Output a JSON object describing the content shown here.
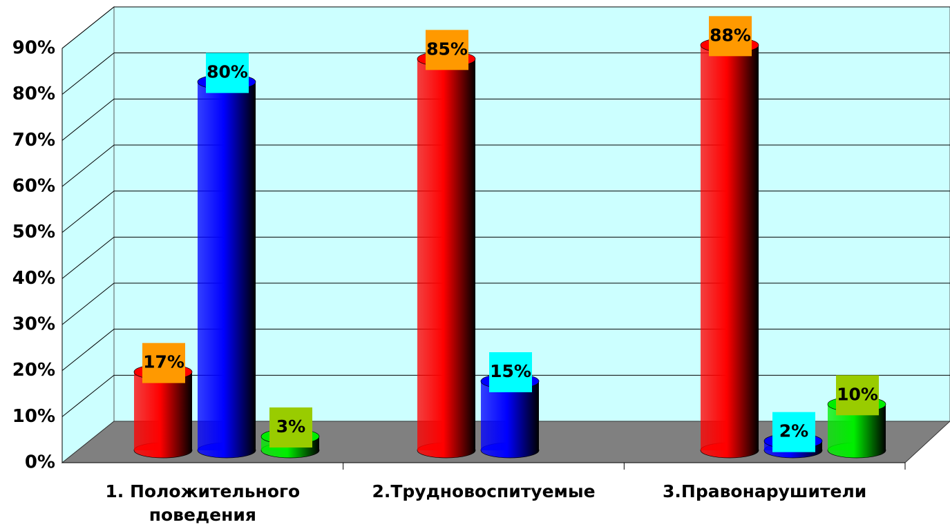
{
  "chart_data": {
    "type": "bar3d",
    "categories": [
      "1. Положительного поведения",
      "2.Трудновоспитуемые",
      "3.Правонарушители"
    ],
    "series": [
      {
        "color": "#ff0000",
        "label_color": "#ff9900",
        "values": [
          17,
          85,
          88
        ],
        "value_labels": [
          "17%",
          "85%",
          "88%"
        ]
      },
      {
        "color": "#0000ff",
        "label_color": "#00ffff",
        "values": [
          80,
          15,
          2
        ],
        "value_labels": [
          "80%",
          "15%",
          "2%"
        ]
      },
      {
        "color": "#00ee00",
        "label_color": "#99cc00",
        "values": [
          3,
          null,
          10
        ],
        "value_labels": [
          "3%",
          null,
          "10%"
        ]
      }
    ],
    "ylim": [
      0,
      90
    ],
    "yticks": [
      {
        "value": 0,
        "label": "0%"
      },
      {
        "value": 10,
        "label": "10%"
      },
      {
        "value": 20,
        "label": "20%"
      },
      {
        "value": 30,
        "label": "30%"
      },
      {
        "value": 40,
        "label": "40%"
      },
      {
        "value": 50,
        "label": "50%"
      },
      {
        "value": 60,
        "label": "60%"
      },
      {
        "value": 70,
        "label": "70%"
      },
      {
        "value": 80,
        "label": "80%"
      },
      {
        "value": 90,
        "label": "90%"
      }
    ],
    "grid": true
  }
}
